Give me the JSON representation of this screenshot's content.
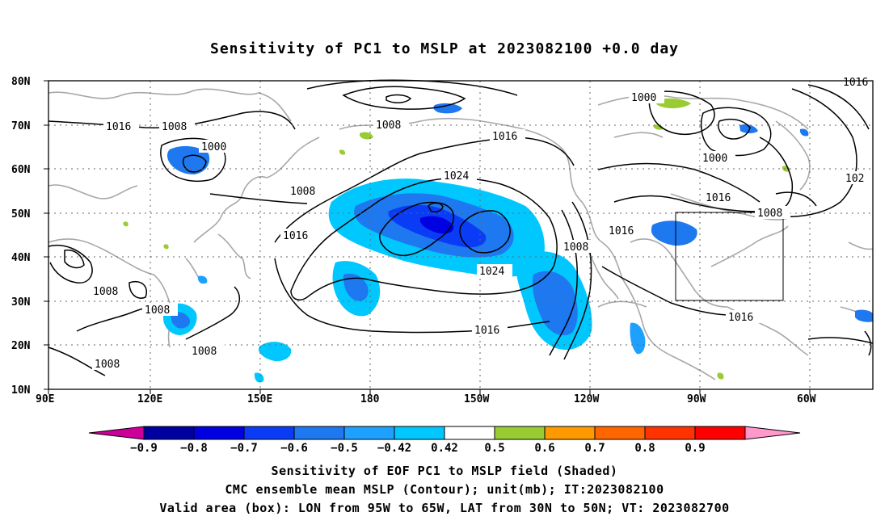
{
  "title": "Sensitivity of PC1 to MSLP at 2023082100 +0.0 day",
  "lat_ticks": [
    "80N",
    "70N",
    "60N",
    "50N",
    "40N",
    "30N",
    "20N",
    "10N"
  ],
  "lon_ticks": [
    "90E",
    "120E",
    "150E",
    "180",
    "150W",
    "120W",
    "90W",
    "60W"
  ],
  "contour_labels": [
    "1016",
    "1008",
    "1000",
    "1008",
    "1000",
    "1016",
    "1024",
    "1008",
    "1016",
    "1024",
    "1008",
    "1016",
    "1008",
    "1008",
    "1008",
    "1016",
    "1008",
    "1016",
    "1000",
    "1016",
    "1008",
    "1016",
    "102",
    "1016",
    "1008",
    "1008"
  ],
  "colorbar": {
    "labels": [
      "−0.9",
      "−0.8",
      "−0.7",
      "−0.6",
      "−0.5",
      "−0.42",
      "0.42",
      "0.5",
      "0.6",
      "0.7",
      "0.8",
      "0.9"
    ],
    "colors": [
      "#cc0099",
      "#0000a0",
      "#0000e0",
      "#0a3cf5",
      "#1e78f0",
      "#1ea0ff",
      "#00c8ff",
      "#ffffff",
      "#99cc33",
      "#ff9900",
      "#ff6600",
      "#ff3300",
      "#ff0000",
      "#ff99cc"
    ]
  },
  "valid_box": {
    "lon_from": "95W",
    "lon_to": "65W",
    "lat_from": "30N",
    "lat_to": "50N"
  },
  "captions": [
    "Sensitivity of EOF PC1 to MSLP field (Shaded)",
    "CMC ensemble mean MSLP (Contour); unit(mb); IT:2023082100",
    "Valid area (box): LON from 95W to 65W, LAT from 30N to 50N; VT: 2023082700"
  ]
}
